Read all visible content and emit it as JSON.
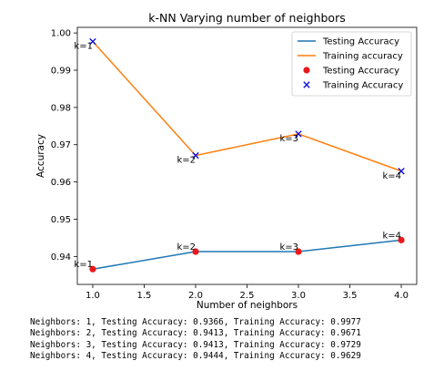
{
  "chart_data": {
    "type": "line",
    "title": "k-NN Varying number of neighbors",
    "xlabel": "Number of neighbors",
    "ylabel": "Accuracy",
    "x": [
      1,
      2,
      3,
      4
    ],
    "xlim": [
      0.85,
      4.15
    ],
    "ylim": [
      0.9325,
      1.0015
    ],
    "xticks": [
      1.0,
      1.5,
      2.0,
      2.5,
      3.0,
      3.5,
      4.0
    ],
    "xtick_labels": [
      "1.0",
      "1.5",
      "2.0",
      "2.5",
      "3.0",
      "3.5",
      "4.0"
    ],
    "yticks": [
      0.94,
      0.95,
      0.96,
      0.97,
      0.98,
      0.99,
      1.0
    ],
    "ytick_labels": [
      "0.94",
      "0.95",
      "0.96",
      "0.97",
      "0.98",
      "0.99",
      "1.00"
    ],
    "grid": false,
    "legend_position": "top-right",
    "series": [
      {
        "name": "Testing Accuracy",
        "kind": "line",
        "color": "#1f77b4",
        "values": [
          0.9366,
          0.9413,
          0.9413,
          0.9444
        ]
      },
      {
        "name": "Training accuracy",
        "kind": "line",
        "color": "#ff7f0e",
        "values": [
          0.9977,
          0.9671,
          0.9729,
          0.9629
        ]
      },
      {
        "name": "Testing Accuracy",
        "kind": "scatter",
        "marker": "circle",
        "color": "#e8191c",
        "values": [
          0.9366,
          0.9413,
          0.9413,
          0.9444
        ]
      },
      {
        "name": "Training Accuracy",
        "kind": "scatter",
        "marker": "x",
        "color": "#1010d8",
        "values": [
          0.9977,
          0.9671,
          0.9729,
          0.9629
        ]
      }
    ],
    "annotations": {
      "testing": [
        "k=1",
        "k=2",
        "k=3",
        "k=4"
      ],
      "training": [
        "k=1",
        "k=2",
        "k=3",
        "k=4"
      ]
    }
  },
  "console": {
    "lines": [
      "Neighbors: 1, Testing Accuracy: 0.9366, Training Accuracy: 0.9977",
      "Neighbors: 2, Testing Accuracy: 0.9413, Training Accuracy: 0.9671",
      "Neighbors: 3, Testing Accuracy: 0.9413, Training Accuracy: 0.9729",
      "Neighbors: 4, Testing Accuracy: 0.9444, Training Accuracy: 0.9629"
    ]
  }
}
